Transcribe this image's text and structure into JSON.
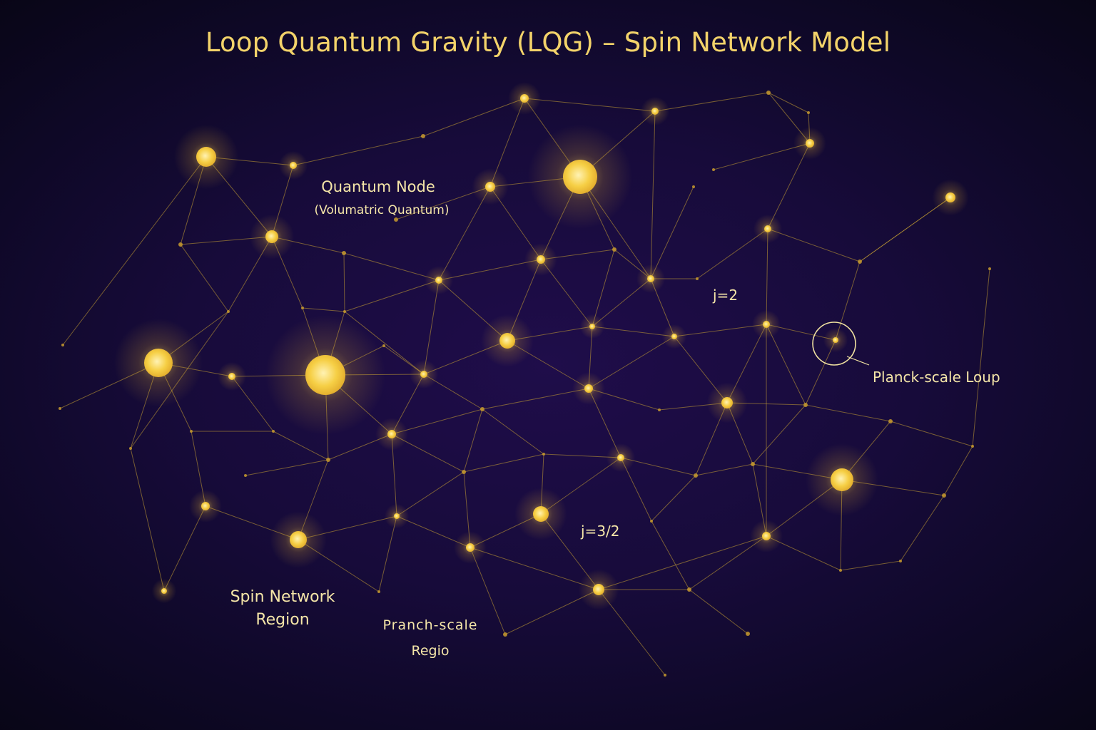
{
  "title": "Loop Quantum Gravity (LQG) – Spin Network Model",
  "colors": {
    "background": "#170b3a",
    "node": "#f3c63a",
    "edge": "#c9a233",
    "text": "#f5e6a8",
    "title": "#f3d36a"
  },
  "labels": {
    "quantum_node": "Quantum Node",
    "quantum_node_sub": "(Volumatric Quantum)",
    "spin_j2": "j=2",
    "spin_j32": "j=3/2",
    "planck_loop": "Planck-scale Loup",
    "spin_region_line1": "Spin Network",
    "spin_region_line2": "Region",
    "pranch_line1": "Pranch-scale",
    "pranch_line2": "Regio"
  }
}
